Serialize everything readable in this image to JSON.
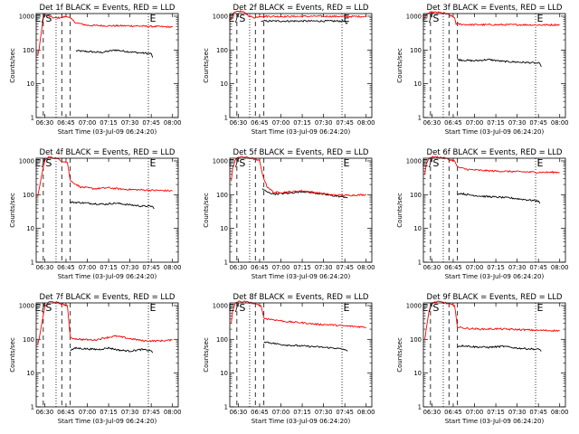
{
  "colors": {
    "events": "#000000",
    "lld": "#ff0000",
    "axis": "#000000"
  },
  "chart_data": [
    {
      "type": "line",
      "title": "Det 1f BLACK = Events, RED = LLD",
      "xlabel": "Start Time (03-Jul-09 06:24:20)",
      "ylabel": "Counts/sec",
      "xlim": [
        "06:24",
        "08:04"
      ],
      "ylim": [
        1,
        1200
      ],
      "yscale": "log",
      "xticks": [
        "06:30",
        "06:45",
        "07:00",
        "07:15",
        "07:30",
        "07:45",
        "08:00"
      ],
      "yticks": [
        "1",
        "10",
        "100",
        "1000"
      ],
      "markers": {
        "s_label": "S",
        "e_label": "E"
      },
      "series": [
        {
          "name": "BLACK = Events",
          "color": "#000000",
          "x": [
            "06:52",
            "07:00",
            "07:10",
            "07:20",
            "07:30",
            "07:38",
            "07:45",
            "07:46"
          ],
          "y": [
            95,
            90,
            85,
            100,
            88,
            82,
            78,
            60
          ]
        },
        {
          "name": "RED = LLD",
          "color": "#ff0000",
          "x": [
            "06:25",
            "06:26",
            "06:27",
            "06:29",
            "06:31",
            "06:33",
            "06:37",
            "06:42",
            "06:46",
            "06:52",
            "07:00",
            "07:15",
            "07:30",
            "07:45",
            "08:00"
          ],
          "y": [
            70,
            100,
            220,
            900,
            1100,
            1000,
            880,
            920,
            1000,
            640,
            540,
            520,
            520,
            500,
            480
          ]
        }
      ]
    },
    {
      "type": "line",
      "title": "Det 2f BLACK = Events, RED = LLD",
      "xlabel": "Start Time (03-Jul-09 06:24:20)",
      "ylabel": "Counts/sec",
      "xlim": [
        "06:24",
        "08:04"
      ],
      "ylim": [
        1,
        1200
      ],
      "yscale": "log",
      "xticks": [
        "06:30",
        "06:45",
        "07:00",
        "07:15",
        "07:30",
        "07:45",
        "08:00"
      ],
      "yticks": [
        "1",
        "10",
        "100",
        "1000"
      ],
      "markers": {
        "s_label": "S",
        "e_label": "E"
      },
      "series": [
        {
          "name": "BLACK = Events",
          "color": "#000000",
          "x": [
            "06:46",
            "06:47",
            "06:48",
            "07:45",
            "07:46",
            "07:47"
          ],
          "y": [
            700,
            720,
            720,
            720,
            600,
            650
          ]
        },
        {
          "name": "RED = LLD",
          "color": "#ff0000",
          "x": [
            "06:25",
            "06:26",
            "06:27",
            "06:29",
            "06:31",
            "06:34",
            "06:38",
            "06:42",
            "06:45",
            "06:48",
            "07:00",
            "07:15",
            "07:30",
            "07:45",
            "08:00"
          ],
          "y": [
            800,
            1100,
            1300,
            1400,
            1400,
            1300,
            1000,
            900,
            1000,
            1000,
            980,
            990,
            1000,
            980,
            990
          ]
        }
      ]
    },
    {
      "type": "line",
      "title": "Det 3f BLACK = Events, RED = LLD",
      "xlabel": "Start Time (03-Jul-09 06:24:20)",
      "ylabel": "Counts/sec",
      "xlim": [
        "06:24",
        "08:04"
      ],
      "ylim": [
        1,
        1200
      ],
      "yscale": "log",
      "xticks": [
        "06:30",
        "06:45",
        "07:00",
        "07:15",
        "07:30",
        "07:45",
        "08:00"
      ],
      "yticks": [
        "1",
        "10",
        "100",
        "1000"
      ],
      "markers": {
        "s_label": "S",
        "e_label": "E"
      },
      "series": [
        {
          "name": "BLACK = Events",
          "color": "#000000",
          "x": [
            "06:48",
            "06:52",
            "07:00",
            "07:10",
            "07:20",
            "07:30",
            "07:40",
            "07:46",
            "07:47"
          ],
          "y": [
            52,
            50,
            48,
            52,
            46,
            44,
            42,
            40,
            32
          ]
        },
        {
          "name": "RED = LLD",
          "color": "#ff0000",
          "x": [
            "06:25",
            "06:26",
            "06:27",
            "06:29",
            "06:33",
            "06:38",
            "06:42",
            "06:46",
            "06:47",
            "06:52",
            "07:00",
            "07:15",
            "07:30",
            "07:45",
            "08:00"
          ],
          "y": [
            900,
            1100,
            1200,
            1300,
            1300,
            1250,
            1100,
            900,
            600,
            570,
            560,
            560,
            560,
            550,
            560
          ]
        }
      ]
    },
    {
      "type": "line",
      "title": "Det 4f BLACK = Events, RED = LLD",
      "xlabel": "Start Time (03-Jul-09 06:24:20)",
      "ylabel": "Counts/sec",
      "xlim": [
        "06:24",
        "08:04"
      ],
      "ylim": [
        1,
        1200
      ],
      "yscale": "log",
      "xticks": [
        "06:30",
        "06:45",
        "07:00",
        "07:15",
        "07:30",
        "07:45",
        "08:00"
      ],
      "yticks": [
        "1",
        "10",
        "100",
        "1000"
      ],
      "markers": {
        "s_label": "S",
        "e_label": "E"
      },
      "series": [
        {
          "name": "BLACK = Events",
          "color": "#000000",
          "x": [
            "06:48",
            "06:55",
            "07:03",
            "07:12",
            "07:20",
            "07:30",
            "07:38",
            "07:46",
            "07:47"
          ],
          "y": [
            60,
            58,
            55,
            52,
            56,
            50,
            46,
            45,
            38
          ]
        },
        {
          "name": "RED = LLD",
          "color": "#ff0000",
          "x": [
            "06:25",
            "06:26",
            "06:28",
            "06:30",
            "06:33",
            "06:38",
            "06:42",
            "06:46",
            "06:48",
            "06:55",
            "07:05",
            "07:15",
            "07:25",
            "07:35",
            "07:45",
            "08:00"
          ],
          "y": [
            90,
            140,
            400,
            1000,
            1300,
            1200,
            1000,
            900,
            260,
            170,
            150,
            160,
            145,
            140,
            135,
            130
          ]
        }
      ]
    },
    {
      "type": "line",
      "title": "Det 5f BLACK = Events, RED = LLD",
      "xlabel": "Start Time (03-Jul-09 06:24:20)",
      "ylabel": "Counts/sec",
      "xlim": [
        "06:24",
        "08:04"
      ],
      "ylim": [
        1,
        1200
      ],
      "yscale": "log",
      "xticks": [
        "06:30",
        "06:45",
        "07:00",
        "07:15",
        "07:30",
        "07:45",
        "08:00"
      ],
      "yticks": [
        "1",
        "10",
        "100",
        "1000"
      ],
      "markers": {
        "s_label": "S",
        "e_label": "E"
      },
      "series": [
        {
          "name": "BLACK = Events",
          "color": "#000000",
          "x": [
            "06:47",
            "06:50",
            "06:55",
            "07:05",
            "07:15",
            "07:25",
            "07:35",
            "07:45",
            "07:47"
          ],
          "y": [
            150,
            120,
            105,
            110,
            125,
            110,
            95,
            85,
            80
          ]
        },
        {
          "name": "RED = LLD",
          "color": "#ff0000",
          "x": [
            "06:25",
            "06:26",
            "06:28",
            "06:30",
            "06:33",
            "06:38",
            "06:42",
            "06:45",
            "06:47",
            "06:50",
            "06:55",
            "07:05",
            "07:15",
            "07:25",
            "07:35",
            "07:45",
            "08:00"
          ],
          "y": [
            250,
            600,
            1100,
            1300,
            1300,
            1250,
            1100,
            1000,
            400,
            180,
            115,
            120,
            130,
            115,
            100,
            95,
            100
          ]
        }
      ]
    },
    {
      "type": "line",
      "title": "Det 6f BLACK = Events, RED = LLD",
      "xlabel": "Start Time (03-Jul-09 06:24:20)",
      "ylabel": "Counts/sec",
      "xlim": [
        "06:24",
        "08:04"
      ],
      "ylim": [
        1,
        1200
      ],
      "yscale": "log",
      "xticks": [
        "06:30",
        "06:45",
        "07:00",
        "07:15",
        "07:30",
        "07:45",
        "08:00"
      ],
      "yticks": [
        "1",
        "10",
        "100",
        "1000"
      ],
      "markers": {
        "s_label": "S",
        "e_label": "E"
      },
      "series": [
        {
          "name": "BLACK = Events",
          "color": "#000000",
          "x": [
            "06:48",
            "06:50",
            "06:55",
            "07:05",
            "07:15",
            "07:25",
            "07:35",
            "07:45",
            "07:46"
          ],
          "y": [
            100,
            110,
            100,
            90,
            85,
            80,
            72,
            65,
            55
          ]
        },
        {
          "name": "RED = LLD",
          "color": "#ff0000",
          "x": [
            "06:25",
            "06:26",
            "06:28",
            "06:30",
            "06:34",
            "06:38",
            "06:42",
            "06:46",
            "06:48",
            "06:55",
            "07:05",
            "07:15",
            "07:30",
            "07:45",
            "08:00"
          ],
          "y": [
            400,
            800,
            1200,
            1300,
            1300,
            1250,
            1100,
            1000,
            650,
            560,
            520,
            500,
            480,
            460,
            460
          ]
        }
      ]
    },
    {
      "type": "line",
      "title": "Det 7f BLACK = Events, RED = LLD",
      "xlabel": "Start Time (03-Jul-09 06:24:20)",
      "ylabel": "Counts/sec",
      "xlim": [
        "06:24",
        "08:04"
      ],
      "ylim": [
        1,
        1200
      ],
      "yscale": "log",
      "xticks": [
        "06:30",
        "06:45",
        "07:00",
        "07:15",
        "07:30",
        "07:45",
        "08:00"
      ],
      "yticks": [
        "1",
        "10",
        "100",
        "1000"
      ],
      "markers": {
        "s_label": "S",
        "e_label": "E"
      },
      "series": [
        {
          "name": "BLACK = Events",
          "color": "#000000",
          "x": [
            "06:48",
            "06:52",
            "07:00",
            "07:08",
            "07:15",
            "07:22",
            "07:30",
            "07:38",
            "07:45",
            "07:46"
          ],
          "y": [
            48,
            55,
            52,
            50,
            56,
            48,
            45,
            50,
            46,
            40
          ]
        },
        {
          "name": "RED = LLD",
          "color": "#ff0000",
          "x": [
            "06:25",
            "06:26",
            "06:28",
            "06:30",
            "06:33",
            "06:38",
            "06:42",
            "06:46",
            "06:48",
            "06:55",
            "07:05",
            "07:12",
            "07:20",
            "07:30",
            "07:40",
            "07:50",
            "08:00"
          ],
          "y": [
            70,
            100,
            300,
            900,
            1300,
            1250,
            1100,
            1000,
            110,
            100,
            95,
            110,
            125,
            105,
            90,
            90,
            95
          ]
        }
      ]
    },
    {
      "type": "line",
      "title": "Det 8f BLACK = Events, RED = LLD",
      "xlabel": "Start Time (03-Jul-09 06:24:20)",
      "ylabel": "Counts/sec",
      "xlim": [
        "06:24",
        "08:04"
      ],
      "ylim": [
        1,
        1200
      ],
      "yscale": "log",
      "xticks": [
        "06:30",
        "06:45",
        "07:00",
        "07:15",
        "07:30",
        "07:45",
        "08:00"
      ],
      "yticks": [
        "1",
        "10",
        "100",
        "1000"
      ],
      "markers": {
        "s_label": "S",
        "e_label": "E"
      },
      "series": [
        {
          "name": "BLACK = Events",
          "color": "#000000",
          "x": [
            "06:48",
            "06:52",
            "07:00",
            "07:10",
            "07:20",
            "07:30",
            "07:38",
            "07:45",
            "07:47"
          ],
          "y": [
            85,
            80,
            70,
            65,
            62,
            58,
            55,
            50,
            45
          ]
        },
        {
          "name": "RED = LLD",
          "color": "#ff0000",
          "x": [
            "06:25",
            "06:26",
            "06:28",
            "06:30",
            "06:34",
            "06:38",
            "06:42",
            "06:46",
            "06:48",
            "06:55",
            "07:05",
            "07:15",
            "07:25",
            "07:35",
            "07:45",
            "08:00"
          ],
          "y": [
            300,
            700,
            1200,
            1300,
            1300,
            1250,
            1100,
            1000,
            420,
            380,
            330,
            310,
            280,
            270,
            250,
            230
          ]
        }
      ]
    },
    {
      "type": "line",
      "title": "Det 9f BLACK = Events, RED = LLD",
      "xlabel": "Start Time (03-Jul-09 06:24:20)",
      "ylabel": "Counts/sec",
      "xlim": [
        "06:24",
        "08:04"
      ],
      "ylim": [
        1,
        1200
      ],
      "yscale": "log",
      "xticks": [
        "06:30",
        "06:45",
        "07:00",
        "07:15",
        "07:30",
        "07:45",
        "08:00"
      ],
      "yticks": [
        "1",
        "10",
        "100",
        "1000"
      ],
      "markers": {
        "s_label": "S",
        "e_label": "E"
      },
      "series": [
        {
          "name": "BLACK = Events",
          "color": "#000000",
          "x": [
            "06:48",
            "06:52",
            "07:00",
            "07:10",
            "07:20",
            "07:30",
            "07:40",
            "07:46",
            "07:47"
          ],
          "y": [
            62,
            65,
            60,
            58,
            62,
            55,
            52,
            50,
            44
          ]
        },
        {
          "name": "RED = LLD",
          "color": "#ff0000",
          "x": [
            "06:25",
            "06:26",
            "06:28",
            "06:30",
            "06:34",
            "06:38",
            "06:42",
            "06:46",
            "06:48",
            "06:55",
            "07:05",
            "07:15",
            "07:30",
            "07:45",
            "08:00"
          ],
          "y": [
            100,
            200,
            700,
            1200,
            1300,
            1250,
            1100,
            1000,
            230,
            210,
            200,
            205,
            195,
            185,
            180
          ]
        }
      ]
    }
  ]
}
